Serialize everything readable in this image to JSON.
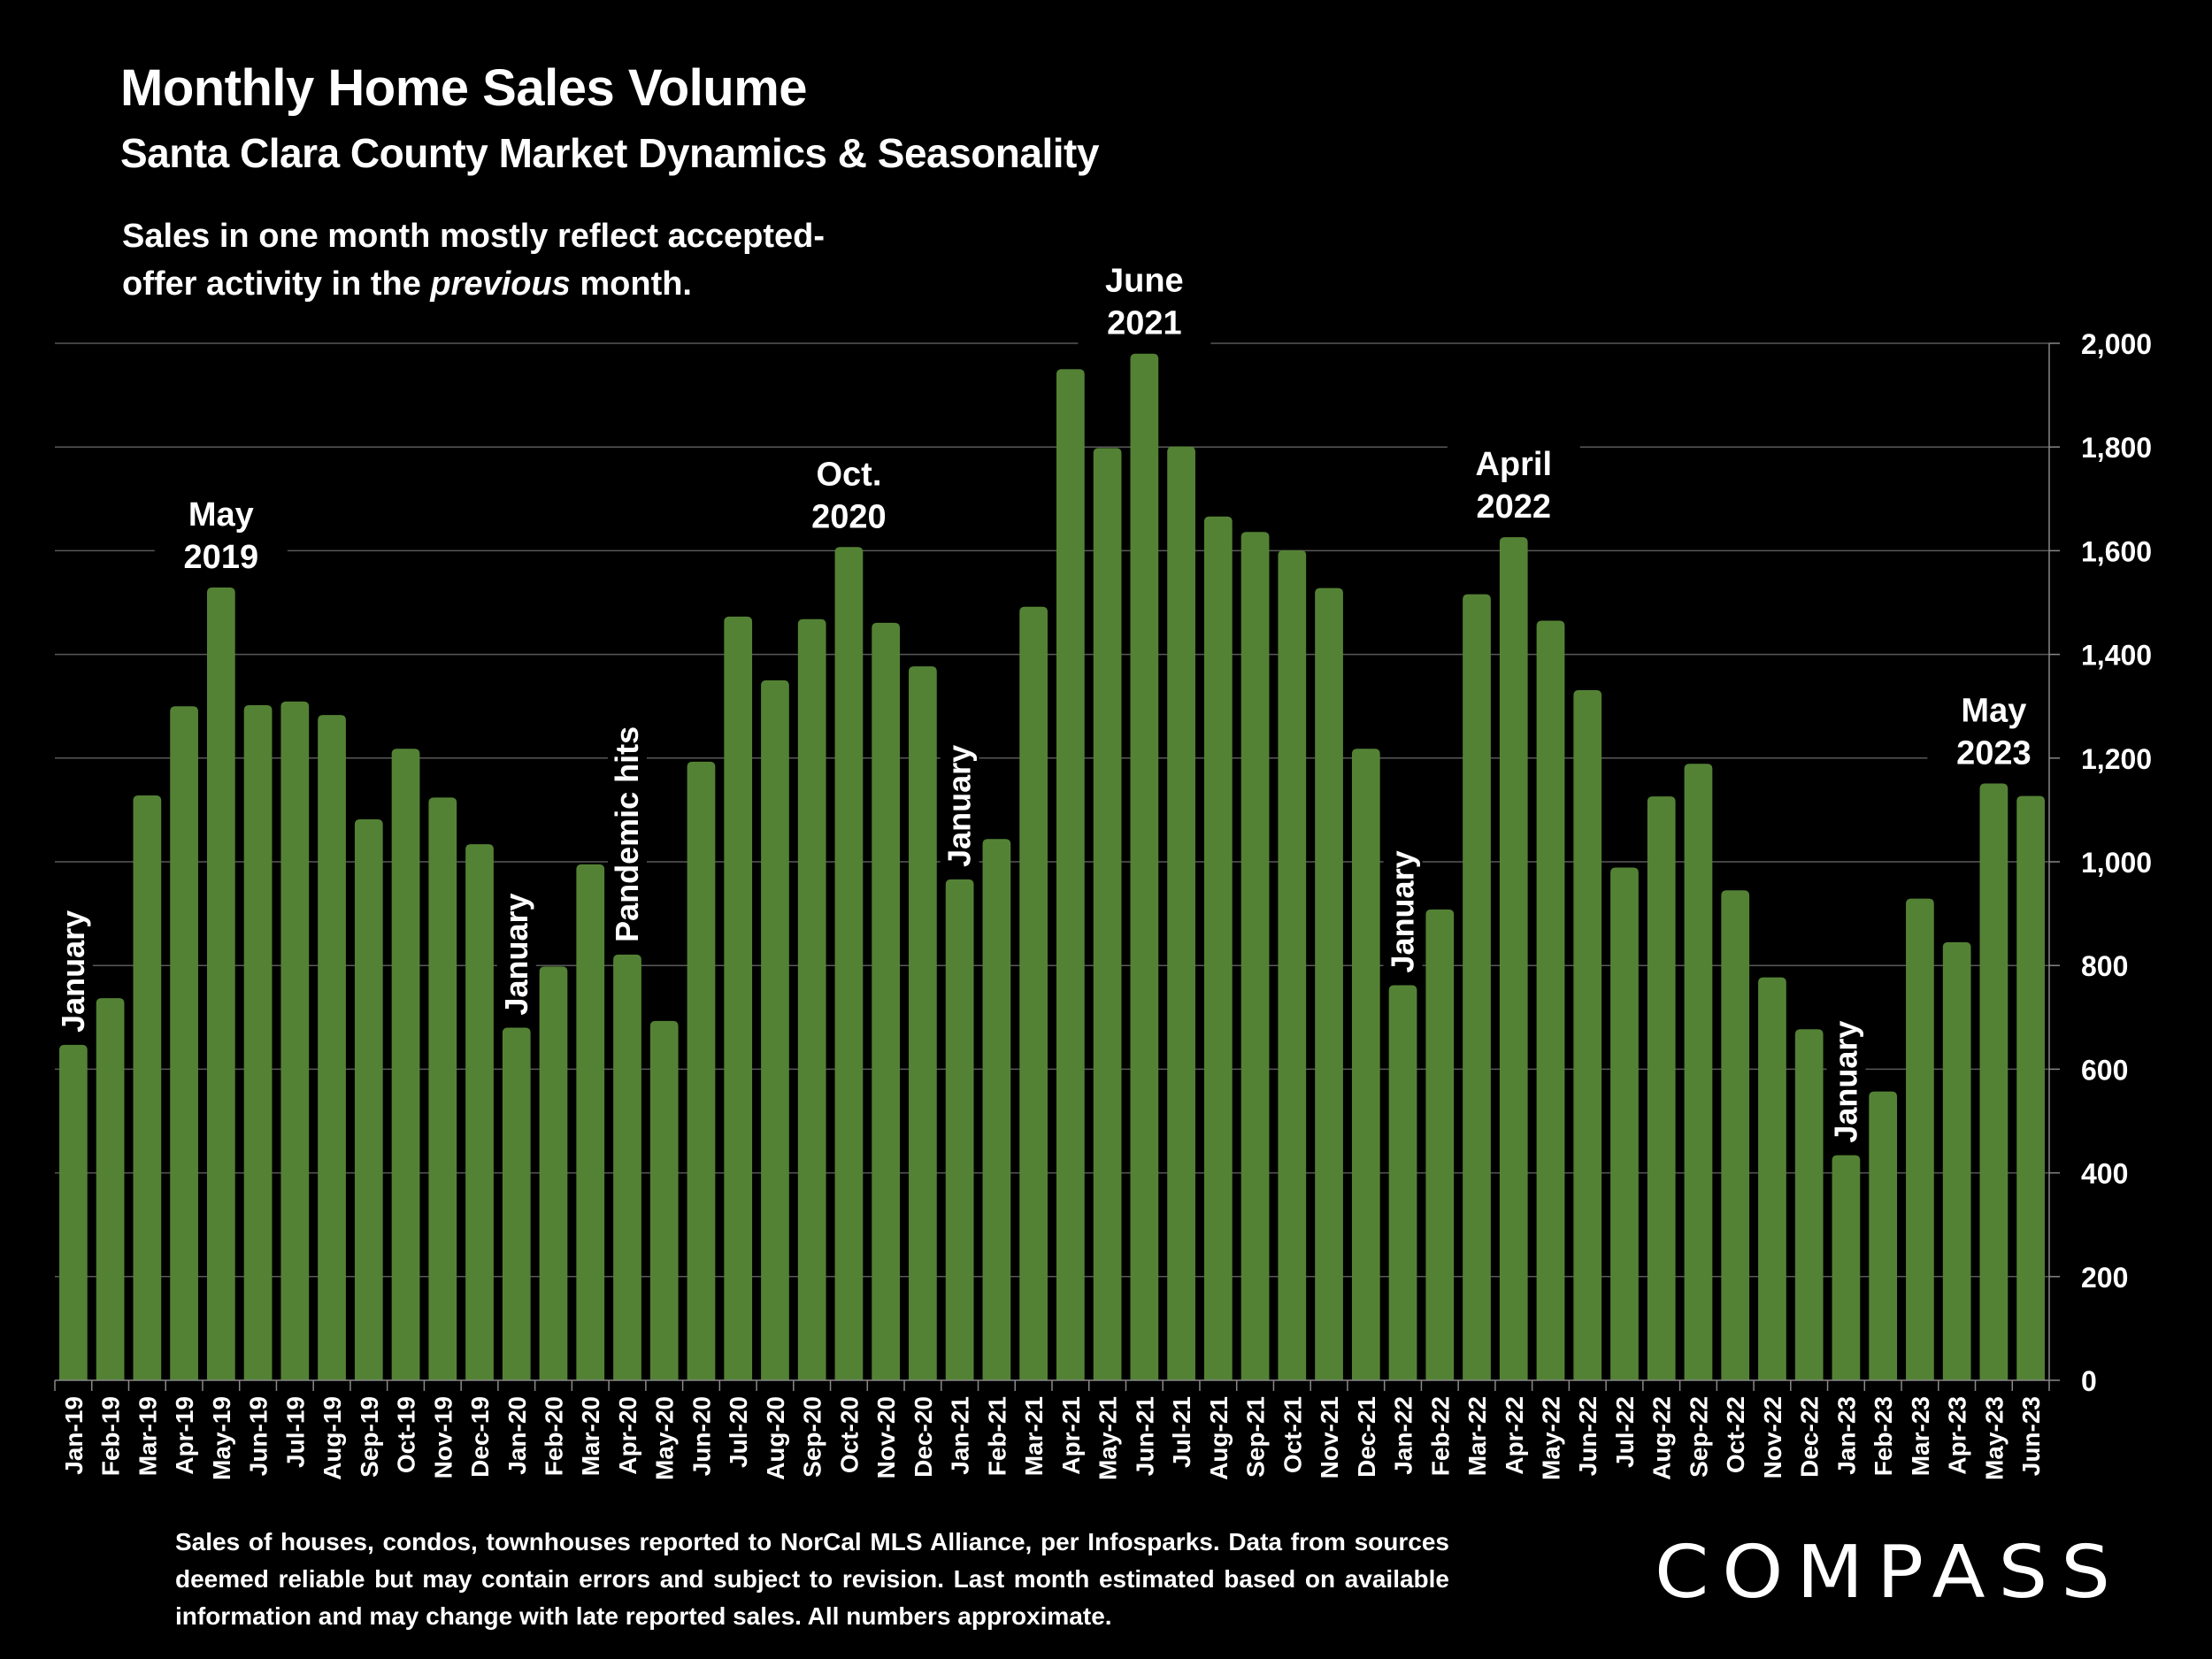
{
  "header": {
    "title": "Monthly Home Sales Volume",
    "subtitle": "Santa Clara County Market Dynamics & Seasonality",
    "note_line1": "Sales in one month mostly reflect accepted-",
    "note_line2_pre": "offer activity in the ",
    "note_line2_em": "previous",
    "note_line2_post": " month."
  },
  "footer": {
    "text": "Sales of houses, condos, townhouses reported to NorCal MLS Alliance, per Infosparks. Data from sources deemed reliable but may contain errors and subject to revision. Last month estimated based on available information and may change with late reported sales. All numbers approximate."
  },
  "logo": {
    "text": "COMPASS",
    "icon": "compass-logo-icon"
  },
  "colors": {
    "bar": "#548235",
    "background": "#000000",
    "text": "#ffffff",
    "grid": "#595959"
  },
  "chart_data": {
    "type": "bar",
    "title": "Monthly Home Sales Volume",
    "xlabel": "",
    "ylabel": "",
    "ylim": [
      0,
      2000
    ],
    "yticks": [
      0,
      200,
      400,
      600,
      800,
      1000,
      1200,
      1400,
      1600,
      1800,
      2000
    ],
    "ytick_labels": [
      "0",
      "200",
      "400",
      "600",
      "800",
      "1,000",
      "1,200",
      "1,400",
      "1,600",
      "1,800",
      "2,000"
    ],
    "y_axis_side": "right",
    "grid": true,
    "categories": [
      "Jan-19",
      "Feb-19",
      "Mar-19",
      "Apr-19",
      "May-19",
      "Jun-19",
      "Jul-19",
      "Aug-19",
      "Sep-19",
      "Oct-19",
      "Nov-19",
      "Dec-19",
      "Jan-20",
      "Feb-20",
      "Mar-20",
      "Apr-20",
      "May-20",
      "Jun-20",
      "Jul-20",
      "Aug-20",
      "Sep-20",
      "Oct-20",
      "Nov-20",
      "Dec-20",
      "Jan-21",
      "Feb-21",
      "Mar-21",
      "Apr-21",
      "May-21",
      "Jun-21",
      "Jul-21",
      "Aug-21",
      "Sep-21",
      "Oct-21",
      "Nov-21",
      "Dec-21",
      "Jan-22",
      "Feb-22",
      "Mar-22",
      "Apr-22",
      "May-22",
      "Jun-22",
      "Jul-22",
      "Aug-22",
      "Sep-22",
      "Oct-22",
      "Nov-22",
      "Dec-22",
      "Jan-23",
      "Feb-23",
      "Mar-23",
      "Apr-23",
      "May-23",
      "Jun-23"
    ],
    "values": [
      647,
      737,
      1128,
      1300,
      1529,
      1302,
      1309,
      1283,
      1082,
      1218,
      1124,
      1034,
      680,
      798,
      995,
      821,
      693,
      1193,
      1473,
      1350,
      1468,
      1607,
      1461,
      1377,
      966,
      1044,
      1492,
      1950,
      1798,
      1980,
      1801,
      1666,
      1636,
      1601,
      1528,
      1218,
      762,
      908,
      1516,
      1626,
      1465,
      1331,
      989,
      1126,
      1189,
      945,
      777,
      677,
      434,
      557,
      929,
      845,
      1151,
      1127
    ],
    "annotations": [
      {
        "lines": [
          "January"
        ],
        "category": "Jan-19",
        "rotated": true
      },
      {
        "lines": [
          "May",
          "2019"
        ],
        "category": "May-19",
        "rotated": false
      },
      {
        "lines": [
          "January"
        ],
        "category": "Jan-20",
        "rotated": true
      },
      {
        "lines": [
          "Pandemic hits"
        ],
        "category": "Apr-20",
        "rotated": true
      },
      {
        "lines": [
          "Oct.",
          "2020"
        ],
        "category": "Oct-20",
        "rotated": false
      },
      {
        "lines": [
          "January"
        ],
        "category": "Jan-21",
        "rotated": true
      },
      {
        "lines": [
          "June",
          "2021"
        ],
        "category": "Jun-21",
        "rotated": false
      },
      {
        "lines": [
          "January"
        ],
        "category": "Jan-22",
        "rotated": true
      },
      {
        "lines": [
          "April",
          "2022"
        ],
        "category": "Apr-22",
        "rotated": false
      },
      {
        "lines": [
          "January"
        ],
        "category": "Jan-23",
        "rotated": true
      },
      {
        "lines": [
          "May",
          "2023"
        ],
        "category": "May-23",
        "rotated": false
      }
    ]
  }
}
